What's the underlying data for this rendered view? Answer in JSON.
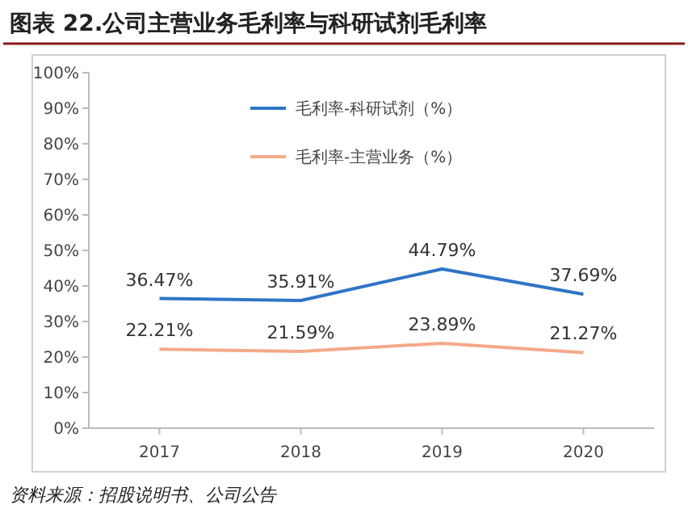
{
  "chart_data": {
    "type": "line",
    "title": "图表 22.公司主营业务毛利率与科研试剂毛利率",
    "categories": [
      "2017",
      "2018",
      "2019",
      "2020"
    ],
    "series": [
      {
        "name": "毛利率-科研试剂（%）",
        "color": "#2f75c6",
        "values": [
          36.47,
          35.91,
          44.79,
          37.69
        ],
        "value_labels": [
          "36.47%",
          "35.91%",
          "44.79%",
          "37.69%"
        ]
      },
      {
        "name": "毛利率-主营业务（%）",
        "color": "#f4a98a",
        "values": [
          22.21,
          21.59,
          23.89,
          21.27
        ],
        "value_labels": [
          "22.21%",
          "21.59%",
          "23.89%",
          "21.27%"
        ]
      }
    ],
    "ylim": [
      0,
      100
    ],
    "yticks": [
      {
        "value": 0,
        "label": "0%"
      },
      {
        "value": 10,
        "label": "10%"
      },
      {
        "value": 20,
        "label": "20%"
      },
      {
        "value": 30,
        "label": "30%"
      },
      {
        "value": 40,
        "label": "40%"
      },
      {
        "value": 50,
        "label": "50%"
      },
      {
        "value": 60,
        "label": "60%"
      },
      {
        "value": 70,
        "label": "70%"
      },
      {
        "value": 80,
        "label": "80%"
      },
      {
        "value": 90,
        "label": "90%"
      },
      {
        "value": 100,
        "label": "100%"
      }
    ],
    "grid": false,
    "legend": "top",
    "marker": "none",
    "line_style": "solid",
    "annotations": [
      "资料来源：招股说明书、公司公告"
    ]
  }
}
